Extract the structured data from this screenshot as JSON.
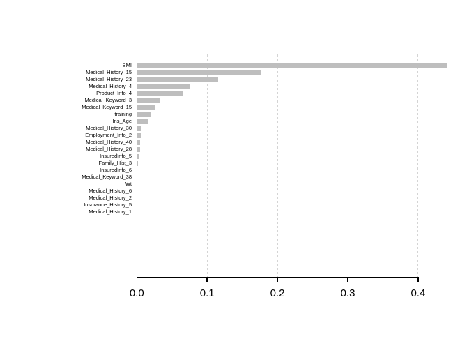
{
  "chart_data": {
    "type": "bar",
    "orientation": "horizontal",
    "title": "",
    "xlabel": "",
    "ylabel": "",
    "categories": [
      "BMI",
      "Medical_History_15",
      "Medical_History_23",
      "Medical_History_4",
      "Product_Info_4",
      "Medical_Keyword_3",
      "Medical_Keyword_15",
      "training",
      "Ins_Age",
      "Medical_History_30",
      "Employment_Info_2",
      "Medical_History_40",
      "Medical_History_28",
      "InsuredInfo_5",
      "Family_Hist_3",
      "InsuredInfo_6",
      "Medical_Keyword_38",
      "Wt",
      "Medical_History_6",
      "Medical_History_2",
      "Insurance_History_5",
      "Medical_History_1"
    ],
    "values": [
      0.442,
      0.1765,
      0.116,
      0.0755,
      0.0665,
      0.0327,
      0.0263,
      0.0203,
      0.0168,
      0.006,
      0.0052,
      0.005,
      0.0048,
      0.0028,
      0.0013,
      0.0011,
      0.0004,
      0.0002,
      0.0002,
      0.0001,
      0.0001,
      0.0001
    ],
    "x_ticks": [
      {
        "value": 0.0,
        "label": "0.0"
      },
      {
        "value": 0.1,
        "label": "0.1"
      },
      {
        "value": 0.2,
        "label": "0.2"
      },
      {
        "value": 0.3,
        "label": "0.3"
      },
      {
        "value": 0.4,
        "label": "0.4"
      }
    ],
    "xlim": [
      0.0,
      0.45
    ],
    "grid": {
      "vertical": true,
      "horizontal": false,
      "style": "dashed"
    },
    "legend": null,
    "colors": {
      "bar": "#bebebe",
      "grid": "#d4d4d4",
      "axis": "#000000",
      "text": "#000000",
      "background": "#ffffff"
    }
  }
}
